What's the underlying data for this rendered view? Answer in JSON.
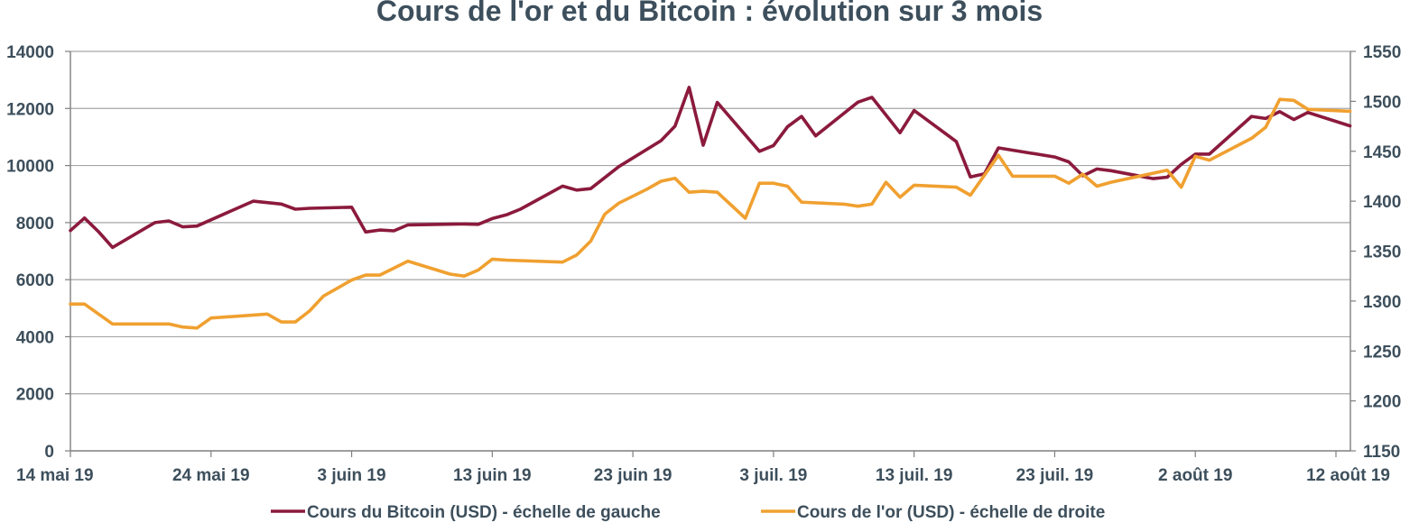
{
  "chart_data": {
    "type": "line",
    "title": "Cours de l'or et du Bitcoin : évolution sur 3 mois",
    "x_ticks": [
      "14 mai 19",
      "24 mai 19",
      "3 juin 19",
      "13 juin 19",
      "23 juin 19",
      "3 juil. 19",
      "13 juil. 19",
      "23 juil. 19",
      "2 août 19",
      "12 août 19"
    ],
    "x_range": [
      "2019-05-14",
      "2019-08-12"
    ],
    "y_left": {
      "ticks": [
        "0",
        "2000",
        "4000",
        "6000",
        "8000",
        "10000",
        "12000",
        "14000"
      ],
      "range": [
        0,
        14000
      ]
    },
    "y_right": {
      "ticks": [
        "1150",
        "1200",
        "1250",
        "1300",
        "1350",
        "1400",
        "1450",
        "1500",
        "1550"
      ],
      "range": [
        1150,
        1550
      ]
    },
    "grid": true,
    "legend_position": "bottom",
    "colors": {
      "bitcoin": "#8b1a3d",
      "gold": "#f0a030",
      "axis": "#7f7f7f",
      "text": "#3d4f5c"
    },
    "series": [
      {
        "name": "Cours du Bitcoin (USD) - échelle de gauche",
        "axis": "left",
        "color": "#8b1a3d",
        "points": [
          [
            "2019-05-14",
            7720
          ],
          [
            "2019-05-15",
            8160
          ],
          [
            "2019-05-16",
            7680
          ],
          [
            "2019-05-17",
            7130
          ],
          [
            "2019-05-20",
            8000
          ],
          [
            "2019-05-21",
            8060
          ],
          [
            "2019-05-22",
            7850
          ],
          [
            "2019-05-23",
            7880
          ],
          [
            "2019-05-27",
            8750
          ],
          [
            "2019-05-29",
            8650
          ],
          [
            "2019-05-30",
            8470
          ],
          [
            "2019-05-31",
            8500
          ],
          [
            "2019-06-03",
            8540
          ],
          [
            "2019-06-04",
            7670
          ],
          [
            "2019-06-05",
            7740
          ],
          [
            "2019-06-06",
            7710
          ],
          [
            "2019-06-07",
            7920
          ],
          [
            "2019-06-11",
            7950
          ],
          [
            "2019-06-12",
            7940
          ],
          [
            "2019-06-13",
            8140
          ],
          [
            "2019-06-14",
            8270
          ],
          [
            "2019-06-15",
            8470
          ],
          [
            "2019-06-18",
            9280
          ],
          [
            "2019-06-19",
            9140
          ],
          [
            "2019-06-20",
            9190
          ],
          [
            "2019-06-22",
            9960
          ],
          [
            "2019-06-25",
            10870
          ],
          [
            "2019-06-26",
            11380
          ],
          [
            "2019-06-27",
            12740
          ],
          [
            "2019-06-28",
            10710
          ],
          [
            "2019-06-29",
            12210
          ],
          [
            "2019-07-02",
            10500
          ],
          [
            "2019-07-03",
            10700
          ],
          [
            "2019-07-04",
            11360
          ],
          [
            "2019-07-05",
            11720
          ],
          [
            "2019-07-06",
            11040
          ],
          [
            "2019-07-09",
            12220
          ],
          [
            "2019-07-10",
            12390
          ],
          [
            "2019-07-12",
            11150
          ],
          [
            "2019-07-13",
            11930
          ],
          [
            "2019-07-16",
            10840
          ],
          [
            "2019-07-17",
            9600
          ],
          [
            "2019-07-18",
            9710
          ],
          [
            "2019-07-19",
            10620
          ],
          [
            "2019-07-23",
            10300
          ],
          [
            "2019-07-24",
            10130
          ],
          [
            "2019-07-25",
            9640
          ],
          [
            "2019-07-26",
            9880
          ],
          [
            "2019-07-27",
            9820
          ],
          [
            "2019-07-30",
            9540
          ],
          [
            "2019-07-31",
            9590
          ],
          [
            "2019-08-01",
            10040
          ],
          [
            "2019-08-02",
            10400
          ],
          [
            "2019-08-03",
            10400
          ],
          [
            "2019-08-06",
            11720
          ],
          [
            "2019-08-07",
            11650
          ],
          [
            "2019-08-08",
            11890
          ],
          [
            "2019-08-09",
            11610
          ],
          [
            "2019-08-10",
            11860
          ],
          [
            "2019-08-13",
            11390
          ]
        ]
      },
      {
        "name": "Cours de l'or (USD) - échelle de droite",
        "axis": "right",
        "color": "#f0a030",
        "points": [
          [
            "2019-05-14",
            1297
          ],
          [
            "2019-05-15",
            1297
          ],
          [
            "2019-05-17",
            1277
          ],
          [
            "2019-05-20",
            1277
          ],
          [
            "2019-05-21",
            1277
          ],
          [
            "2019-05-22",
            1274
          ],
          [
            "2019-05-23",
            1273
          ],
          [
            "2019-05-24",
            1283
          ],
          [
            "2019-05-27",
            1286
          ],
          [
            "2019-05-28",
            1287
          ],
          [
            "2019-05-29",
            1279
          ],
          [
            "2019-05-30",
            1279
          ],
          [
            "2019-05-31",
            1290
          ],
          [
            "2019-06-01",
            1305
          ],
          [
            "2019-06-03",
            1321
          ],
          [
            "2019-06-04",
            1326
          ],
          [
            "2019-06-05",
            1326
          ],
          [
            "2019-06-07",
            1340
          ],
          [
            "2019-06-10",
            1327
          ],
          [
            "2019-06-11",
            1325
          ],
          [
            "2019-06-12",
            1331
          ],
          [
            "2019-06-13",
            1342
          ],
          [
            "2019-06-14",
            1341
          ],
          [
            "2019-06-18",
            1339
          ],
          [
            "2019-06-19",
            1346
          ],
          [
            "2019-06-20",
            1360
          ],
          [
            "2019-06-21",
            1387
          ],
          [
            "2019-06-22",
            1398
          ],
          [
            "2019-06-24",
            1412
          ],
          [
            "2019-06-25",
            1420
          ],
          [
            "2019-06-26",
            1423
          ],
          [
            "2019-06-27",
            1409
          ],
          [
            "2019-06-28",
            1410
          ],
          [
            "2019-06-29",
            1409
          ],
          [
            "2019-07-01",
            1383
          ],
          [
            "2019-07-02",
            1418
          ],
          [
            "2019-07-03",
            1418
          ],
          [
            "2019-07-04",
            1415
          ],
          [
            "2019-07-05",
            1399
          ],
          [
            "2019-07-08",
            1397
          ],
          [
            "2019-07-09",
            1395
          ],
          [
            "2019-07-10",
            1397
          ],
          [
            "2019-07-11",
            1419
          ],
          [
            "2019-07-12",
            1404
          ],
          [
            "2019-07-13",
            1416
          ],
          [
            "2019-07-16",
            1414
          ],
          [
            "2019-07-17",
            1406
          ],
          [
            "2019-07-19",
            1446
          ],
          [
            "2019-07-20",
            1425
          ],
          [
            "2019-07-23",
            1425
          ],
          [
            "2019-07-24",
            1418
          ],
          [
            "2019-07-25",
            1427
          ],
          [
            "2019-07-26",
            1415
          ],
          [
            "2019-07-27",
            1419
          ],
          [
            "2019-07-31",
            1431
          ],
          [
            "2019-08-01",
            1414
          ],
          [
            "2019-08-02",
            1445
          ],
          [
            "2019-08-03",
            1441
          ],
          [
            "2019-08-06",
            1463
          ],
          [
            "2019-08-07",
            1474
          ],
          [
            "2019-08-08",
            1502
          ],
          [
            "2019-08-09",
            1501
          ],
          [
            "2019-08-10",
            1492
          ],
          [
            "2019-08-13",
            1490
          ]
        ]
      }
    ]
  }
}
